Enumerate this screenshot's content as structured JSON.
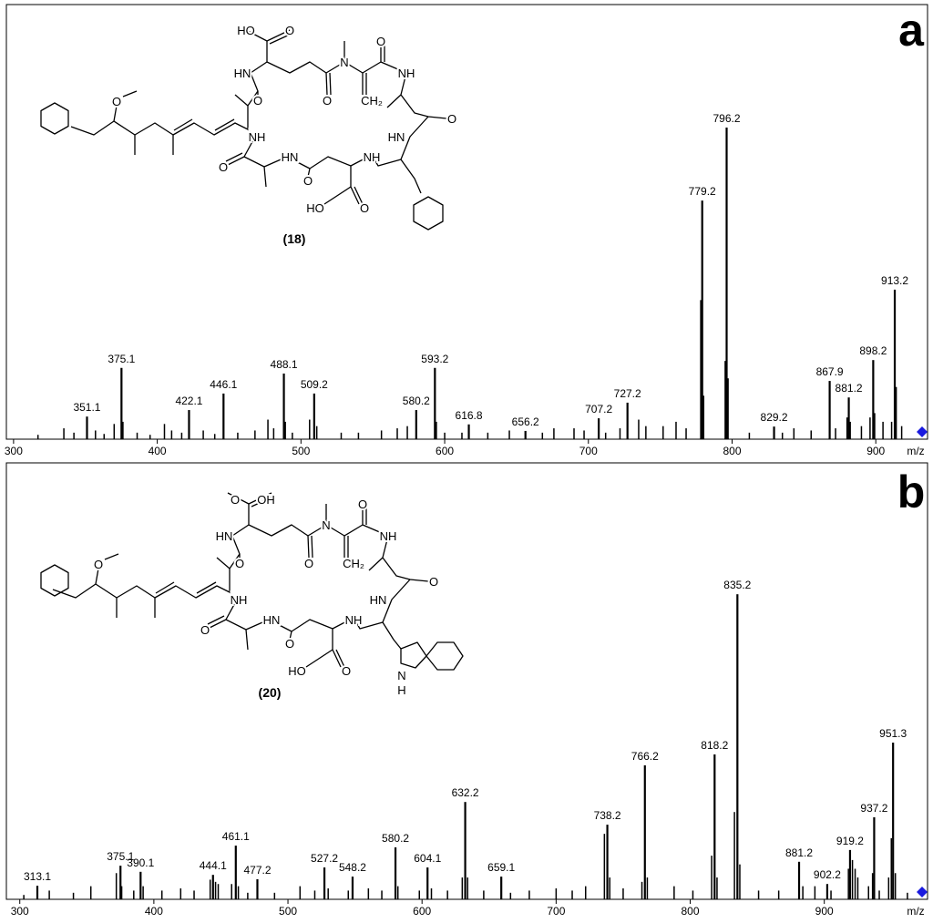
{
  "chart_data": [
    {
      "type": "bar",
      "panel": "a",
      "xlabel": "m/z",
      "xlim": [
        295,
        936
      ],
      "ylim": [
        0,
        100
      ],
      "xticks": [
        300,
        400,
        500,
        600,
        700,
        800,
        900
      ],
      "color": "#000000",
      "x": [
        351.1,
        375.1,
        422.1,
        446.1,
        488.1,
        509.2,
        580.2,
        593.2,
        616.8,
        656.2,
        707.2,
        727.2,
        779.2,
        796.2,
        829.2,
        867.9,
        881.2,
        898.2,
        913.2
      ],
      "values": [
        5.2,
        16.4,
        6.7,
        10.5,
        15.1,
        10.5,
        6.7,
        16.4,
        3.4,
        1.9,
        4.8,
        8.4,
        54.9,
        71.7,
        2.9,
        13.4,
        9.6,
        18.2,
        34.4
      ],
      "minor_peaks": {
        "x": [
          317,
          335,
          342,
          357,
          363,
          370,
          376.1,
          386,
          395,
          405,
          410,
          417,
          432,
          440,
          456,
          468,
          477,
          481,
          489.1,
          494,
          506,
          511,
          528,
          540,
          556,
          567,
          574,
          594.2,
          600,
          612,
          630,
          645,
          668,
          676,
          690,
          697,
          712,
          722,
          735,
          740,
          752,
          761,
          768,
          778.2,
          780.2,
          795.2,
          797.2,
          812,
          835,
          843,
          855,
          872,
          880,
          882.2,
          890,
          896,
          899.2,
          905,
          911,
          914.2,
          918
        ],
        "values": [
          1,
          2.5,
          1.5,
          2,
          1.2,
          3.5,
          4,
          1.5,
          1,
          3.5,
          2,
          1.5,
          2,
          1.2,
          1.5,
          2,
          4.5,
          2.5,
          4,
          1.5,
          4.5,
          3,
          1.5,
          1.5,
          2,
          2.5,
          3,
          4,
          1.5,
          1.5,
          1.5,
          2,
          1.5,
          2.5,
          2.5,
          2,
          1.5,
          2.5,
          4.5,
          3,
          3,
          4,
          2.5,
          32,
          10,
          18,
          14,
          1.5,
          1.5,
          2.5,
          2,
          2.5,
          5,
          4,
          3,
          5,
          6,
          4,
          4,
          12,
          3
        ]
      },
      "structure": {
        "label": "(18)",
        "atoms": [
          "HO",
          "O",
          "N",
          "O",
          "HN",
          "NH",
          "O",
          "O",
          "CH₂",
          "O",
          "NH",
          "HN",
          "O",
          "O",
          "HN",
          "NH",
          "O",
          "HO",
          "O"
        ]
      }
    },
    {
      "type": "bar",
      "panel": "b",
      "xlabel": "m/z",
      "xlim": [
        290,
        977
      ],
      "ylim": [
        0,
        100
      ],
      "xticks": [
        300,
        400,
        500,
        600,
        700,
        800,
        900
      ],
      "color": "#000000",
      "x": [
        313.1,
        375.1,
        390.1,
        444.1,
        461.1,
        477.2,
        527.2,
        548.2,
        580.2,
        604.1,
        632.2,
        659.1,
        738.2,
        766.2,
        818.2,
        835.2,
        881.2,
        902.2,
        919.2,
        937.2,
        951.3
      ],
      "values": [
        3.1,
        7.7,
        6.3,
        5.6,
        12.3,
        4.6,
        7.3,
        5.2,
        11.9,
        7.3,
        22.3,
        5.2,
        17.1,
        30.7,
        33.2,
        69.9,
        8.6,
        3.5,
        11.3,
        18.8,
        35.9
      ],
      "minor_peaks": {
        "x": [
          303,
          322,
          340,
          353,
          372,
          376,
          385,
          392,
          406,
          420,
          430,
          442,
          446,
          448,
          458,
          463,
          470,
          490,
          509,
          520,
          530,
          545,
          560,
          570,
          582,
          598,
          607,
          619,
          630,
          634,
          646,
          666,
          680,
          700,
          712,
          722,
          736,
          740,
          750,
          764,
          768,
          788,
          802,
          816,
          820,
          833,
          837,
          851,
          866,
          884,
          893,
          905,
          918,
          921,
          923,
          925,
          933,
          936,
          941,
          948,
          950,
          953,
          962
        ],
        "values": [
          1,
          2,
          1.5,
          3,
          6,
          3,
          2,
          3,
          2,
          2.5,
          2,
          4.5,
          4,
          3.5,
          3.5,
          3,
          1.5,
          1.5,
          3,
          2,
          2.5,
          2,
          2.5,
          2,
          3,
          2,
          2.5,
          2,
          5,
          5,
          2,
          1.5,
          2,
          2.5,
          2,
          3,
          15,
          5,
          2.5,
          4,
          5,
          3,
          2,
          10,
          5,
          20,
          8,
          2,
          2,
          3,
          3,
          2,
          7,
          9,
          7,
          5,
          3,
          6,
          2,
          5,
          14,
          6,
          1.5
        ]
      },
      "structure": {
        "label": "(20)",
        "atoms": [
          "O",
          "OH",
          "N",
          "O",
          "HN",
          "NH",
          "O",
          "O",
          "CH₂",
          "O",
          "NH",
          "HN",
          "O",
          "O",
          "HN",
          "NH",
          "O",
          "HO",
          "O",
          "N",
          "H"
        ]
      }
    }
  ]
}
